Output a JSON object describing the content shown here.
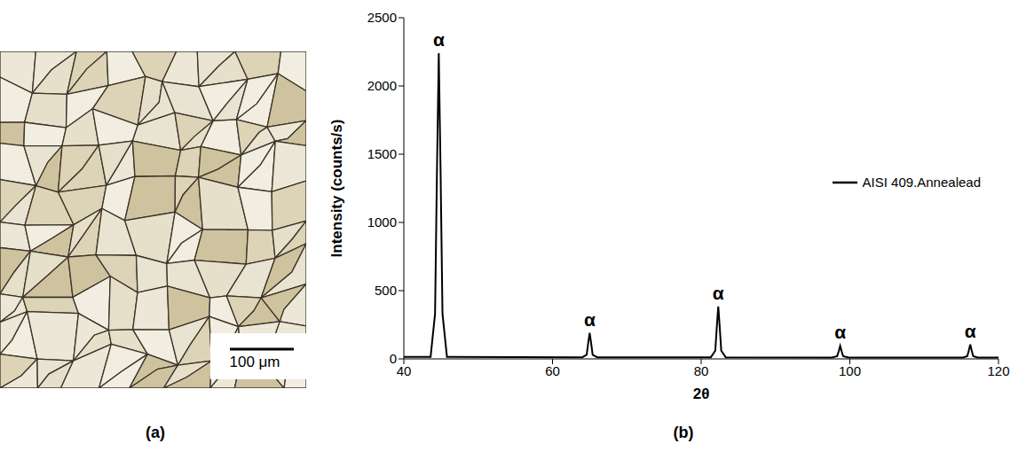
{
  "micrograph": {
    "panel_label": "(a)",
    "scale_bar": "100 μm"
  },
  "chart_data": {
    "type": "line",
    "panel_label": "(b)",
    "xlabel": "2θ",
    "ylabel": "Intensity (counts/s)",
    "x": [
      40,
      43.6,
      44.2,
      44.45,
      44.7,
      44.95,
      45.2,
      45.8,
      64.0,
      64.6,
      64.8,
      65.0,
      65.2,
      65.4,
      66.0,
      81.3,
      81.9,
      82.1,
      82.3,
      82.5,
      82.7,
      83.3,
      97.6,
      98.3,
      98.5,
      98.7,
      98.9,
      99.1,
      99.8,
      115.2,
      115.8,
      116.0,
      116.2,
      116.4,
      116.6,
      117.2,
      120
    ],
    "series": [
      {
        "name": "AISI 409.Annealead",
        "color": "#000000",
        "values": [
          15,
          15,
          330,
          1350,
          2240,
          1350,
          330,
          15,
          12,
          30,
          115,
          190,
          115,
          30,
          12,
          12,
          60,
          230,
          385,
          230,
          60,
          12,
          10,
          20,
          55,
          95,
          55,
          20,
          10,
          10,
          20,
          60,
          105,
          60,
          20,
          10,
          10
        ]
      }
    ],
    "xlim": [
      40,
      120
    ],
    "xticks": [
      40,
      60,
      80,
      100,
      120
    ],
    "ylim": [
      0,
      2500
    ],
    "yticks": [
      0,
      500,
      1000,
      1500,
      2000,
      2500
    ],
    "grid": false,
    "legend": "right",
    "annotations": [
      {
        "x": 44.7,
        "y": 2240,
        "text": "α"
      },
      {
        "x": 65.0,
        "y": 190,
        "text": "α"
      },
      {
        "x": 82.3,
        "y": 385,
        "text": "α"
      },
      {
        "x": 98.7,
        "y": 95,
        "text": "α"
      },
      {
        "x": 116.2,
        "y": 105,
        "text": "α"
      }
    ]
  }
}
